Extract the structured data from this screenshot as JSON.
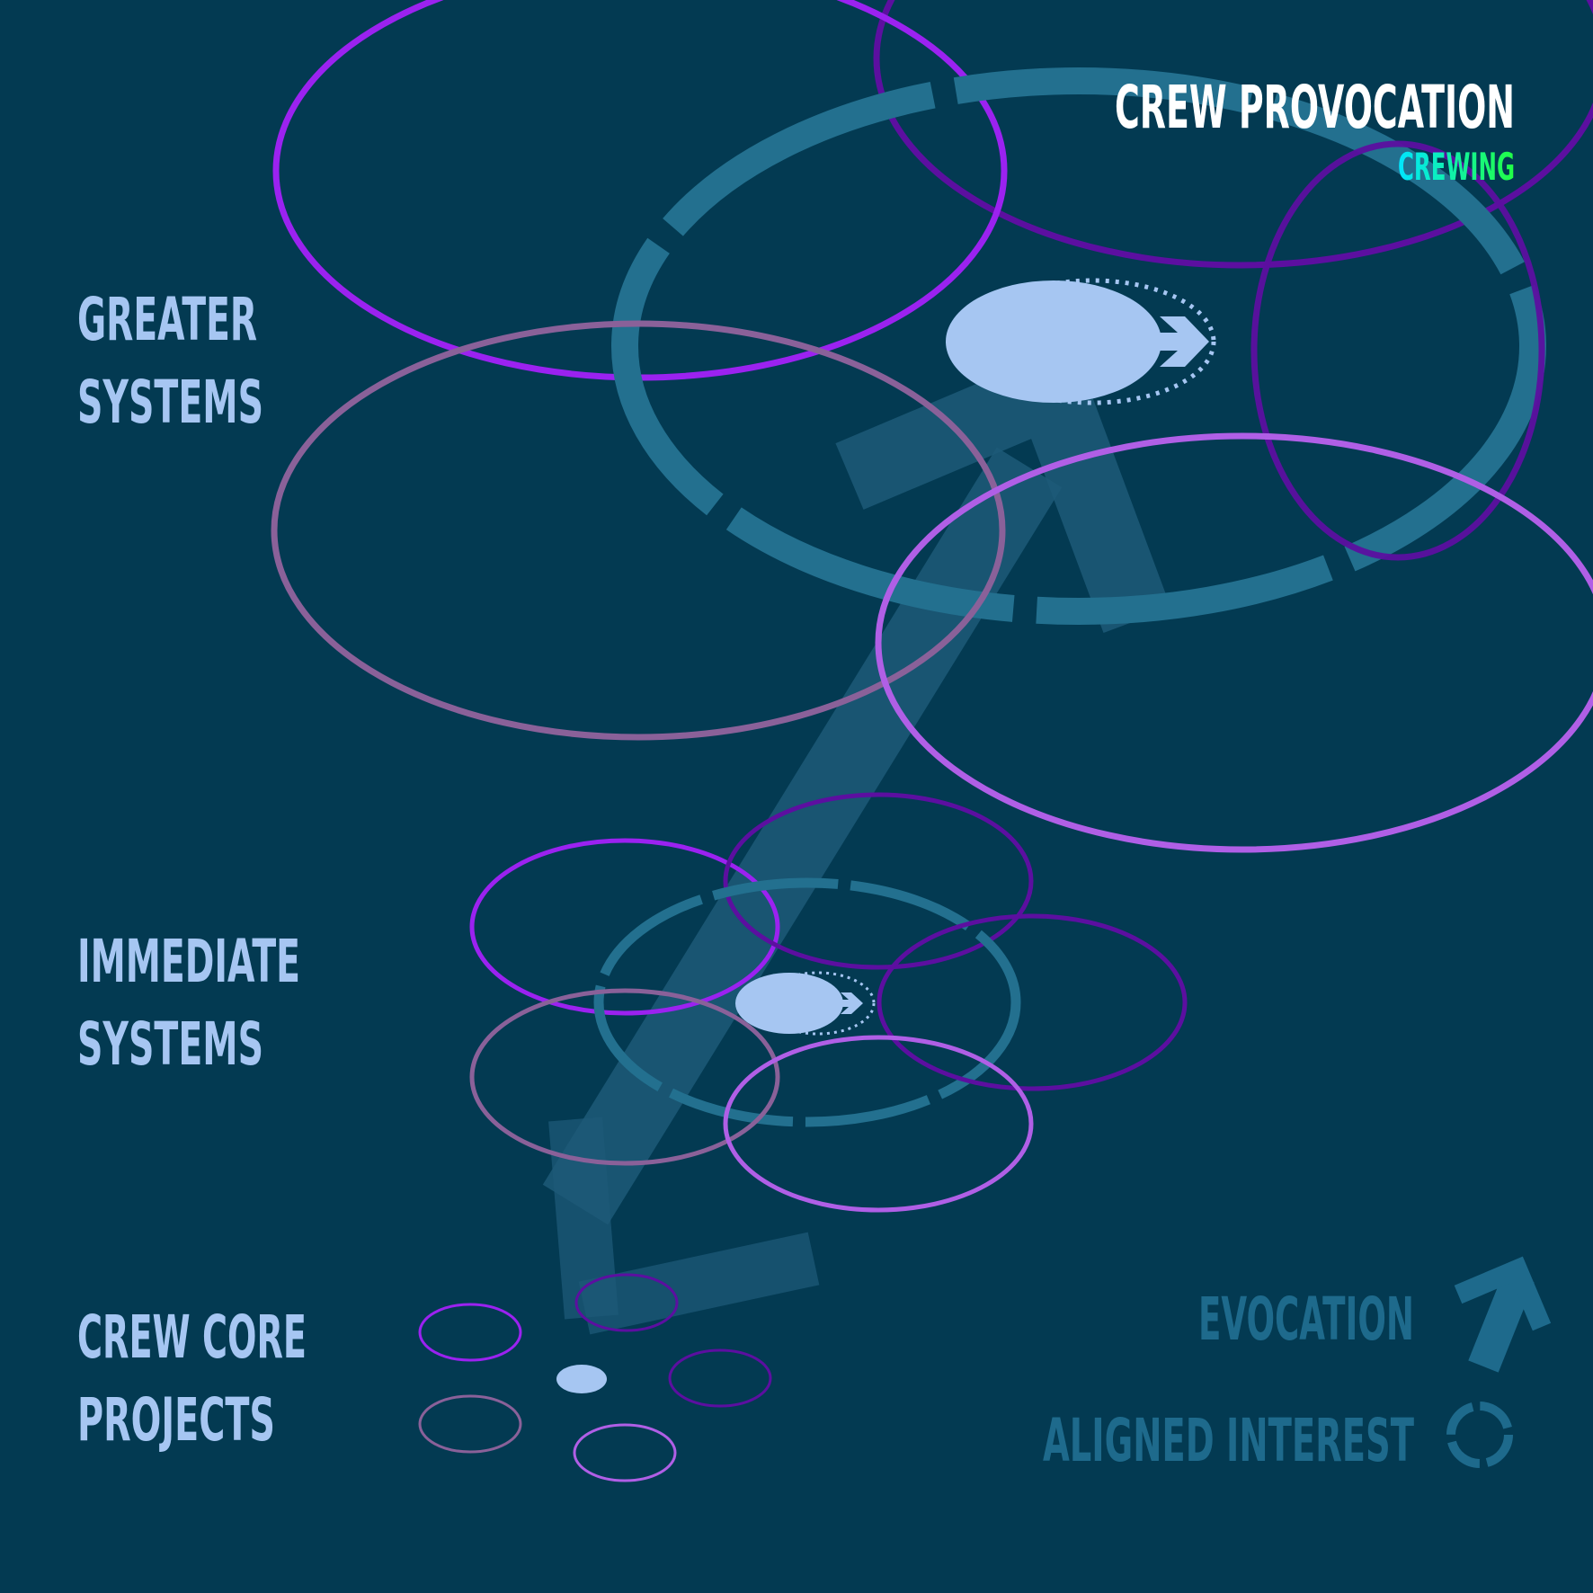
{
  "header": {
    "title": "CREW PROVOCATION",
    "subtitle": "CREWING"
  },
  "tiers": {
    "greater": {
      "line1": "GREATER",
      "line2": "SYSTEMS"
    },
    "immediate": {
      "line1": "IMMEDIATE",
      "line2": "SYSTEMS"
    },
    "core": {
      "line1": "CREW CORE",
      "line2": "PROJECTS"
    }
  },
  "legend": {
    "evocation": "EVOCATION",
    "aligned_interest": "ALIGNED INTEREST"
  },
  "colors": {
    "background": "#033a52",
    "title_text": "#ffffff",
    "subtitle_gradient": [
      "#00e5ff",
      "#22ff44"
    ],
    "tier_label": "#a6c6f2",
    "legend_text": "#1e6a8c",
    "dashed_ring": "#23708f",
    "big_arrow": "#23708f",
    "focus_dot": "#a6c6f2",
    "ring_violet_bright": "#9b22f0",
    "ring_violet_dark": "#5c0fa0",
    "ring_mauve": "#8a6199",
    "ring_lavender": "#b05fe6"
  },
  "icons": {
    "focus_arrow": "chevron-right-icon",
    "evocation": "arrow-up-right-icon",
    "aligned_interest": "dashed-ring-icon"
  }
}
